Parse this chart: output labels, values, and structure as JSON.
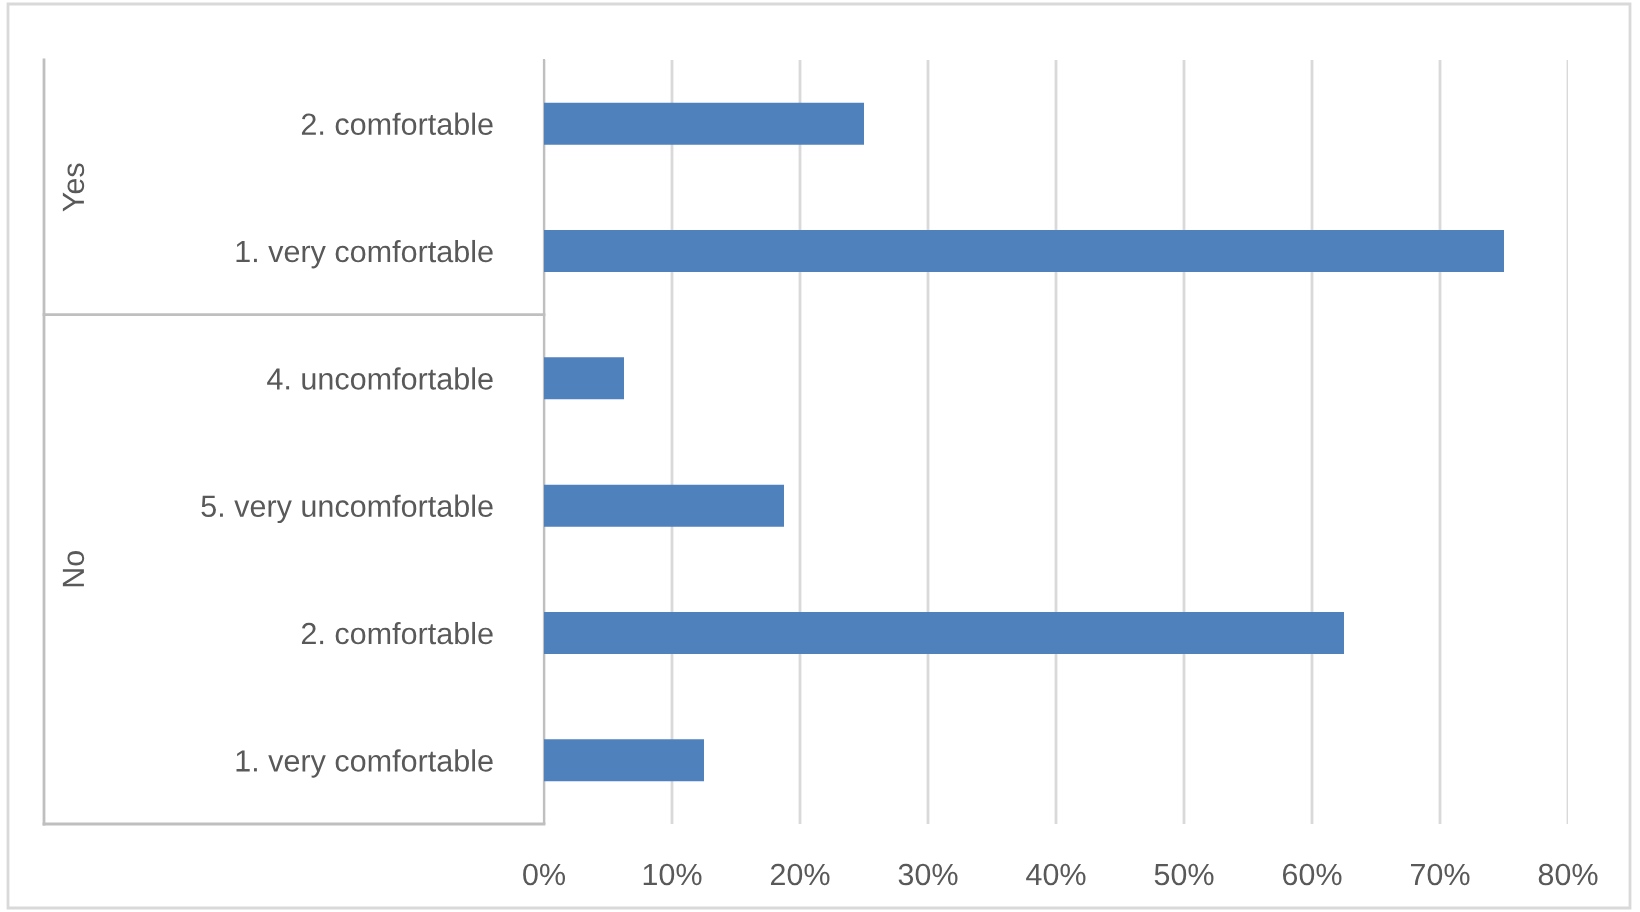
{
  "chart_data": {
    "type": "bar",
    "orientation": "horizontal",
    "categories": [
      "2. comfortable",
      "1. very comfortable",
      "4. uncomfortable",
      "5. very uncomfortable",
      "2. comfortable",
      "1. very comfortable"
    ],
    "values": [
      25,
      75,
      6.25,
      18.75,
      62.5,
      12.5
    ],
    "color": "#4f81bd",
    "xlim": [
      0,
      80
    ],
    "xticks": [
      {
        "value": 0,
        "label": "0%"
      },
      {
        "value": 10,
        "label": "10%"
      },
      {
        "value": 20,
        "label": "20%"
      },
      {
        "value": 30,
        "label": "30%"
      },
      {
        "value": 40,
        "label": "40%"
      },
      {
        "value": 50,
        "label": "50%"
      },
      {
        "value": 60,
        "label": "60%"
      },
      {
        "value": 70,
        "label": "70%"
      },
      {
        "value": 80,
        "label": "80%"
      }
    ],
    "grid": "x",
    "annotations": [
      "Yes",
      "No"
    ]
  }
}
